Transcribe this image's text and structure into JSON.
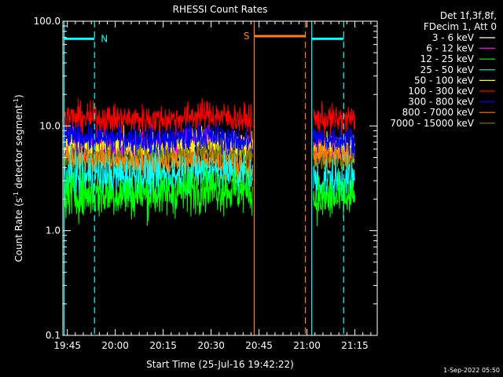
{
  "chart_data": {
    "type": "line",
    "title": "RHESSI Count Rates",
    "xlabel": "Start Time (25-Jul-16 19:42:22)",
    "ylabel": "Count Rate (s-1 detector segment-1)",
    "ylabel_parts": [
      "Count Rate (s",
      "-1",
      " detector segment",
      "-1",
      ")"
    ],
    "y_scale": "log",
    "ylim": [
      0.1,
      100.0
    ],
    "y_ticks": [
      {
        "value": 0.1,
        "label": "0.1"
      },
      {
        "value": 1.0,
        "label": "1.0"
      },
      {
        "value": 10.0,
        "label": "10.0"
      },
      {
        "value": 100.0,
        "label": "100.0"
      }
    ],
    "xlim_minutes": [
      -1.4,
      97
    ],
    "x_ticks": [
      {
        "value": 0,
        "label": "19:45"
      },
      {
        "value": 15,
        "label": "20:00"
      },
      {
        "value": 30,
        "label": "20:15"
      },
      {
        "value": 45,
        "label": "20:30"
      },
      {
        "value": 60,
        "label": "20:45"
      },
      {
        "value": 75,
        "label": "21:00"
      },
      {
        "value": 90,
        "label": "21:15"
      }
    ],
    "legend": {
      "header": [
        "Det 1f,3f,8f,",
        "FDecim 1, Att 0"
      ],
      "placement": "outside-right-top"
    },
    "data_segments": [
      [
        -1.0,
        58.0
      ],
      [
        77.0,
        90.0
      ]
    ],
    "series": [
      {
        "name": "3 - 6 keV",
        "color": "#000000",
        "level_start": 3.0,
        "level_mid": 3.5,
        "level_end": 3.3,
        "level_late": 3.0
      },
      {
        "name": "6 - 12 keV",
        "color": "#ff00ff",
        "level_start": 6.0,
        "level_mid": 6.5,
        "level_end": 6.5,
        "level_late": 6.0
      },
      {
        "name": "12 - 25 keV",
        "color": "#00ff00",
        "level_start": 2.2,
        "level_mid": 2.0,
        "level_end": 2.4,
        "level_late": 2.0
      },
      {
        "name": "25 - 50 keV",
        "color": "#00ffff",
        "level_start": 3.3,
        "level_mid": 3.0,
        "level_end": 3.4,
        "level_late": 3.0
      },
      {
        "name": "50 - 100 keV",
        "color": "#ffff00",
        "level_start": 6.5,
        "level_mid": 5.5,
        "level_end": 6.5,
        "level_late": 6.0
      },
      {
        "name": "100 - 300 keV",
        "color": "#ff0000",
        "level_start": 12.0,
        "level_mid": 10.5,
        "level_end": 11.5,
        "level_late": 11.5
      },
      {
        "name": "300 - 800 keV",
        "color": "#0000ff",
        "level_start": 8.0,
        "level_mid": 6.8,
        "level_end": 7.0,
        "level_late": 7.5
      },
      {
        "name": "800 - 7000 keV",
        "color": "#ff8000",
        "level_start": 5.0,
        "level_mid": 3.8,
        "level_end": 3.8,
        "level_late": 5.5
      },
      {
        "name": "7000 - 15000 keV",
        "color": "#808000",
        "level_start": 5.0,
        "level_mid": 4.5,
        "level_end": 5.0,
        "level_late": 5.0
      }
    ],
    "annotations": [
      {
        "name": "night-start",
        "type": "solid-line",
        "x": -1.0,
        "color": "#00ffff"
      },
      {
        "name": "night-end",
        "type": "dashed-line",
        "x": 8.5,
        "color": "#00ffff"
      },
      {
        "name": "night-bar-1",
        "type": "bar",
        "x_range": [
          -1.0,
          8.5
        ],
        "y": 68,
        "color": "#00ffff",
        "label": "N"
      },
      {
        "name": "saa-start",
        "type": "solid-line",
        "x": 58.5,
        "color": "#ff8000"
      },
      {
        "name": "saa-end",
        "type": "dashed-line",
        "x": 74.5,
        "color": "#ff8000"
      },
      {
        "name": "saa-bar",
        "type": "bar",
        "x_range": [
          58.5,
          74.5
        ],
        "y": 72,
        "color": "#ff8000",
        "label": "S"
      },
      {
        "name": "night-2-start",
        "type": "solid-line",
        "x": 76.5,
        "color": "#00ffff"
      },
      {
        "name": "night-2-end",
        "type": "dashed-line",
        "x": 86.5,
        "color": "#00ffff"
      },
      {
        "name": "night-bar-2",
        "type": "bar",
        "x_range": [
          76.5,
          86.5
        ],
        "y": 68,
        "color": "#00ffff",
        "label": ""
      }
    ]
  },
  "footer": {
    "timestamp": "1-Sep-2022 05:50"
  }
}
